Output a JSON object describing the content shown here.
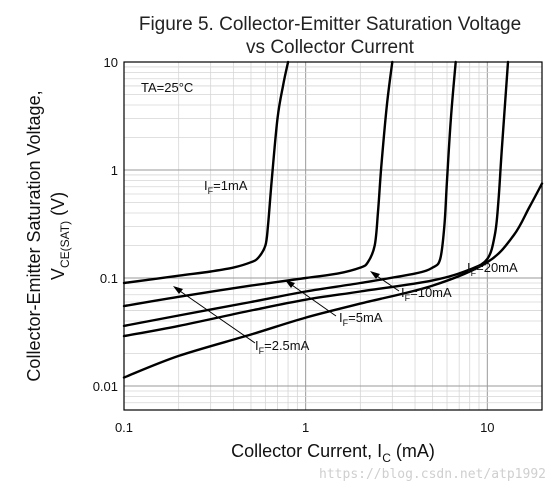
{
  "chart_data": {
    "type": "line",
    "title_line1": "Figure 5. Collector-Emitter Saturation Voltage",
    "title_line2": "vs Collector Current",
    "xlabel_main": "Collector Current, I",
    "xlabel_sub": "C",
    "xlabel_unit": " (mA)",
    "ylabel_line1": "Collector-Emitter Saturation Voltage,",
    "ylabel_line2_main": "V",
    "ylabel_line2_sub": "CE(SAT)",
    "ylabel_line2_unit": " (V)",
    "x_scale": "log",
    "y_scale": "log",
    "xlim": [
      0.1,
      20
    ],
    "ylim": [
      0.006,
      10
    ],
    "x_ticks": [
      "0.1",
      "1",
      "10"
    ],
    "y_ticks": [
      "10",
      "1",
      "0.1",
      "0.01"
    ],
    "grid": true,
    "condition_label": "TA=25°C",
    "series": [
      {
        "name": "IF=1mA",
        "label_main": "I",
        "label_sub": "F",
        "label_rest": "=1mA",
        "points": [
          [
            0.1,
            0.09
          ],
          [
            0.2,
            0.105
          ],
          [
            0.3,
            0.115
          ],
          [
            0.4,
            0.125
          ],
          [
            0.5,
            0.14
          ],
          [
            0.55,
            0.155
          ],
          [
            0.6,
            0.2
          ],
          [
            0.62,
            0.3
          ],
          [
            0.65,
            0.8
          ],
          [
            0.7,
            3
          ],
          [
            0.75,
            6
          ],
          [
            0.8,
            10
          ]
        ]
      },
      {
        "name": "IF=2.5mA",
        "label_main": "I",
        "label_sub": "F",
        "label_rest": "=2.5mA",
        "points": [
          [
            0.1,
            0.055
          ],
          [
            0.2,
            0.067
          ],
          [
            0.5,
            0.085
          ],
          [
            1,
            0.1
          ],
          [
            1.5,
            0.11
          ],
          [
            2,
            0.125
          ],
          [
            2.2,
            0.14
          ],
          [
            2.4,
            0.2
          ],
          [
            2.5,
            0.4
          ],
          [
            2.6,
            1
          ],
          [
            2.8,
            4
          ],
          [
            3,
            10
          ]
        ]
      },
      {
        "name": "IF=5mA",
        "label_main": "I",
        "label_sub": "F",
        "label_rest": "=5mA",
        "points": [
          [
            0.1,
            0.036
          ],
          [
            0.2,
            0.045
          ],
          [
            0.5,
            0.06
          ],
          [
            1,
            0.075
          ],
          [
            2,
            0.09
          ],
          [
            4,
            0.11
          ],
          [
            5,
            0.125
          ],
          [
            5.5,
            0.15
          ],
          [
            5.8,
            0.3
          ],
          [
            6,
            0.8
          ],
          [
            6.3,
            3
          ],
          [
            6.7,
            10
          ]
        ]
      },
      {
        "name": "IF=10mA",
        "label_main": "I",
        "label_sub": "F",
        "label_rest": "=10mA",
        "points": [
          [
            0.1,
            0.029
          ],
          [
            0.2,
            0.036
          ],
          [
            0.5,
            0.05
          ],
          [
            1,
            0.063
          ],
          [
            2,
            0.075
          ],
          [
            5,
            0.095
          ],
          [
            8,
            0.12
          ],
          [
            10,
            0.15
          ],
          [
            11,
            0.25
          ],
          [
            11.5,
            0.5
          ],
          [
            12,
            1.5
          ],
          [
            13,
            10
          ]
        ]
      },
      {
        "name": "IF=20mA",
        "label_main": "I",
        "label_sub": "F",
        "label_rest": "=20mA",
        "points": [
          [
            0.1,
            0.012
          ],
          [
            0.2,
            0.019
          ],
          [
            0.5,
            0.03
          ],
          [
            1,
            0.043
          ],
          [
            2,
            0.058
          ],
          [
            5,
            0.085
          ],
          [
            10,
            0.14
          ],
          [
            14,
            0.25
          ],
          [
            17,
            0.45
          ],
          [
            20,
            0.75
          ]
        ]
      }
    ]
  },
  "watermark": "https://blog.csdn.net/atp1992"
}
